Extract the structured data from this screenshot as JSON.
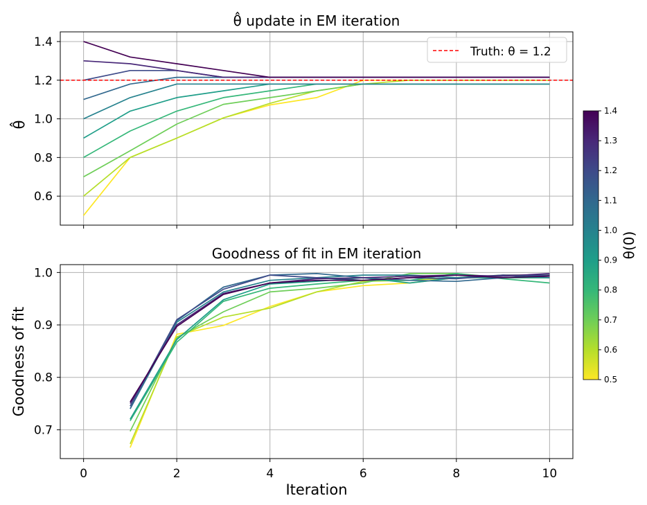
{
  "colors": {
    "grid": "#b0b0b0",
    "truth_line": "#ff0000",
    "colormap": "viridis",
    "viridis_stops": [
      "#440154",
      "#482878",
      "#3e4a89",
      "#31688e",
      "#26828e",
      "#1f9e89",
      "#35b779",
      "#6ece58",
      "#b5de2b",
      "#fde725"
    ]
  },
  "colorbar": {
    "label": "θ(0)",
    "min": 0.5,
    "max": 1.4,
    "ticks": [
      "0.5",
      "0.6",
      "0.7",
      "0.8",
      "0.9",
      "1.0",
      "1.1",
      "1.2",
      "1.3",
      "1.4"
    ]
  },
  "chart_data": [
    {
      "type": "line",
      "title": "θ̂ update in EM iteration",
      "xlabel": "",
      "ylabel": "θ̂",
      "xlim": [
        -0.5,
        10.5
      ],
      "ylim": [
        0.45,
        1.45
      ],
      "xticks": [
        0,
        2,
        4,
        6,
        8,
        10
      ],
      "xtick_labels_visible": false,
      "yticks": [
        "0.6",
        "0.8",
        "1.0",
        "1.2",
        "1.4"
      ],
      "grid": true,
      "legend": {
        "placement": "top-right",
        "entries": [
          "Truth: θ = 1.2"
        ]
      },
      "reference_line": {
        "y": 1.2,
        "style": "dashed",
        "label": "Truth: θ = 1.2"
      },
      "x": [
        0,
        1,
        2,
        3,
        4,
        5,
        6,
        7,
        8,
        9,
        10
      ],
      "series": [
        {
          "theta0": 0.5,
          "values": [
            0.5,
            0.8,
            0.9,
            1.005,
            1.072,
            1.11,
            1.2,
            1.2,
            1.2,
            1.2,
            1.2
          ]
        },
        {
          "theta0": 0.6,
          "values": [
            0.6,
            0.8,
            0.9,
            1.005,
            1.08,
            1.145,
            1.18,
            1.2,
            1.2,
            1.2,
            1.2
          ]
        },
        {
          "theta0": 0.7,
          "values": [
            0.7,
            0.835,
            0.973,
            1.075,
            1.11,
            1.145,
            1.18,
            1.18,
            1.18,
            1.18,
            1.18
          ]
        },
        {
          "theta0": 0.8,
          "values": [
            0.8,
            0.937,
            1.04,
            1.11,
            1.145,
            1.18,
            1.18,
            1.18,
            1.18,
            1.18,
            1.18
          ]
        },
        {
          "theta0": 0.9,
          "values": [
            0.9,
            1.04,
            1.11,
            1.145,
            1.18,
            1.18,
            1.18,
            1.18,
            1.18,
            1.18,
            1.18
          ]
        },
        {
          "theta0": 1.0,
          "values": [
            1.0,
            1.11,
            1.18,
            1.18,
            1.18,
            1.18,
            1.18,
            1.18,
            1.18,
            1.18,
            1.18
          ]
        },
        {
          "theta0": 1.1,
          "values": [
            1.1,
            1.18,
            1.215,
            1.215,
            1.215,
            1.215,
            1.215,
            1.215,
            1.215,
            1.215,
            1.215
          ]
        },
        {
          "theta0": 1.2,
          "values": [
            1.2,
            1.25,
            1.25,
            1.215,
            1.215,
            1.215,
            1.215,
            1.215,
            1.215,
            1.215,
            1.215
          ]
        },
        {
          "theta0": 1.3,
          "values": [
            1.3,
            1.285,
            1.25,
            1.215,
            1.215,
            1.215,
            1.215,
            1.215,
            1.215,
            1.215,
            1.215
          ]
        },
        {
          "theta0": 1.4,
          "values": [
            1.4,
            1.32,
            1.285,
            1.25,
            1.215,
            1.215,
            1.215,
            1.215,
            1.215,
            1.215,
            1.215
          ]
        }
      ]
    },
    {
      "type": "line",
      "title": "Goodness of fit in EM iteration",
      "xlabel": "Iteration",
      "ylabel": "Goodness of fit",
      "xlim": [
        -0.5,
        10.5
      ],
      "ylim": [
        0.645,
        1.015
      ],
      "xticks": [
        0,
        2,
        4,
        6,
        8,
        10
      ],
      "xtick_labels": [
        "0",
        "2",
        "4",
        "6",
        "8",
        "10"
      ],
      "yticks": [
        "0.7",
        "0.8",
        "0.9",
        "1.0"
      ],
      "grid": true,
      "x": [
        1,
        2,
        3,
        4,
        5,
        6,
        7,
        8,
        9,
        10
      ],
      "series": [
        {
          "theta0": 0.5,
          "values": [
            0.666,
            0.882,
            0.899,
            0.935,
            0.963,
            0.975,
            0.98,
            0.99,
            0.995,
            0.995
          ]
        },
        {
          "theta0": 0.6,
          "values": [
            0.673,
            0.877,
            0.915,
            0.932,
            0.963,
            0.983,
            0.985,
            0.99,
            0.99,
            0.99
          ]
        },
        {
          "theta0": 0.7,
          "values": [
            0.697,
            0.875,
            0.925,
            0.963,
            0.97,
            0.98,
            0.998,
            0.998,
            0.99,
            0.99
          ]
        },
        {
          "theta0": 0.8,
          "values": [
            0.717,
            0.867,
            0.945,
            0.97,
            0.978,
            0.985,
            0.985,
            0.998,
            0.988,
            0.98
          ]
        },
        {
          "theta0": 0.9,
          "values": [
            0.72,
            0.872,
            0.948,
            0.978,
            0.983,
            0.99,
            0.98,
            0.99,
            0.99,
            0.99
          ]
        },
        {
          "theta0": 1.0,
          "values": [
            0.74,
            0.905,
            0.963,
            0.985,
            0.99,
            0.995,
            0.995,
            0.99,
            0.995,
            0.99
          ]
        },
        {
          "theta0": 1.1,
          "values": [
            0.74,
            0.908,
            0.972,
            0.995,
            0.998,
            0.99,
            0.985,
            0.983,
            0.99,
            0.995
          ]
        },
        {
          "theta0": 1.2,
          "values": [
            0.745,
            0.91,
            0.968,
            0.995,
            0.99,
            0.985,
            0.99,
            0.988,
            0.995,
            0.995
          ]
        },
        {
          "theta0": 1.3,
          "values": [
            0.75,
            0.9,
            0.96,
            0.98,
            0.988,
            0.99,
            0.993,
            0.995,
            0.993,
            0.998
          ]
        },
        {
          "theta0": 1.4,
          "values": [
            0.753,
            0.897,
            0.958,
            0.98,
            0.985,
            0.985,
            0.99,
            0.995,
            0.99,
            0.993
          ]
        }
      ]
    }
  ]
}
